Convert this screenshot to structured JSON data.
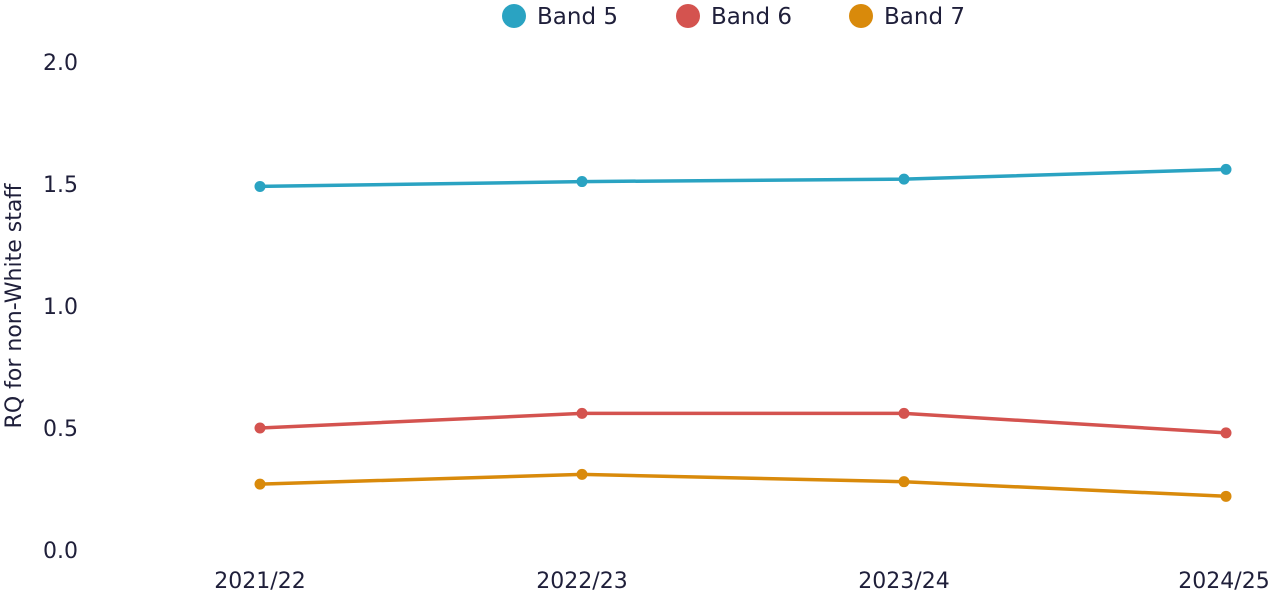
{
  "chart_data": {
    "type": "line",
    "title": "",
    "xlabel": "",
    "ylabel": "RQ for non-White staff",
    "categories": [
      "2021/22",
      "2022/23",
      "2023/24",
      "2024/25"
    ],
    "ylim": [
      0,
      2
    ],
    "yticks": [
      "0.0",
      "0.5",
      "1.0",
      "1.5",
      "2.0"
    ],
    "grid": false,
    "legend_position": "top-center",
    "series": [
      {
        "name": "Band 5",
        "color": "#2aa3c2",
        "values": [
          1.49,
          1.51,
          1.52,
          1.56
        ]
      },
      {
        "name": "Band 6",
        "color": "#d4534f",
        "values": [
          0.5,
          0.56,
          0.56,
          0.48
        ]
      },
      {
        "name": "Band 7",
        "color": "#d98a0b",
        "values": [
          0.27,
          0.31,
          0.28,
          0.22
        ]
      }
    ]
  }
}
